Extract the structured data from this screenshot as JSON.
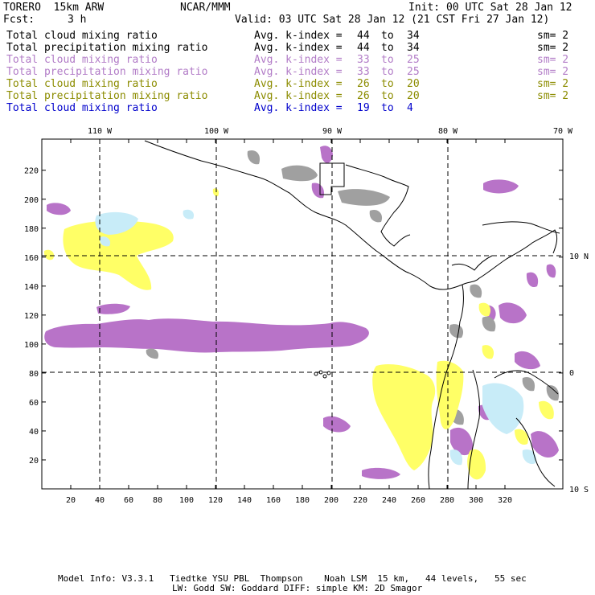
{
  "header": {
    "model": "TORERO  15km ARW",
    "org": "NCAR/MMM",
    "init": "Init: 00 UTC Sat 28 Jan 12",
    "fcst_label": "Fcst:",
    "fcst_value": "3 h",
    "valid": "Valid: 03 UTC Sat 28 Jan 12 (21 CST Fri 27 Jan 12)"
  },
  "legend": [
    {
      "field": "Total cloud mixing ratio",
      "kindex": "Avg. k-index =",
      "from": "44",
      "to_word": "to",
      "to": "34",
      "sm": "sm= 2",
      "color": "#000000"
    },
    {
      "field": "Total precipitation mixing ratio",
      "kindex": "Avg. k-index =",
      "from": "44",
      "to_word": "to",
      "to": "34",
      "sm": "sm= 2",
      "color": "#000000"
    },
    {
      "field": "Total cloud mixing ratio",
      "kindex": "Avg. k-index =",
      "from": "33",
      "to_word": "to",
      "to": "25",
      "sm": "sm= 2",
      "color": "#b27cc7"
    },
    {
      "field": "Total precipitation mixing ratio",
      "kindex": "Avg. k-index =",
      "from": "33",
      "to_word": "to",
      "to": "25",
      "sm": "sm= 2",
      "color": "#b27cc7"
    },
    {
      "field": "Total cloud mixing ratio",
      "kindex": "Avg. k-index =",
      "from": "26",
      "to_word": "to",
      "to": "20",
      "sm": "sm= 2",
      "color": "#8c8c00"
    },
    {
      "field": "Total precipitation mixing ratio",
      "kindex": "Avg. k-index =",
      "from": "26",
      "to_word": "to",
      "to": "20",
      "sm": "sm= 2",
      "color": "#8c8c00"
    },
    {
      "field": "Total cloud mixing ratio",
      "kindex": "Avg. k-index =",
      "from": "19",
      "to_word": "to",
      "to": "4",
      "sm": "",
      "color": "#0000cc"
    }
  ],
  "map": {
    "lon_labels": [
      "110 W",
      "100 W",
      "90 W",
      "80 W",
      "70 W"
    ],
    "lat_labels": [
      "10 N",
      "0",
      "10 S"
    ],
    "y_ticks": [
      "20",
      "40",
      "60",
      "80",
      "100",
      "120",
      "140",
      "160",
      "180",
      "200",
      "220"
    ],
    "x_ticks": [
      "20",
      "40",
      "60",
      "80",
      "100",
      "120",
      "140",
      "160",
      "180",
      "200",
      "220",
      "240",
      "260",
      "280",
      "300",
      "320"
    ],
    "colors": {
      "cloud_high": "#a0a0a0",
      "cloud_mid": "#b873c8",
      "cloud_low": "#ffff66",
      "cloud_very_low": "#c8ecf8"
    }
  },
  "footer": {
    "line1": "Model Info: V3.3.1   Tiedtke YSU PBL  Thompson    Noah LSM  15 km,   44 levels,   55 sec",
    "line2": "LW: Godd SW: Goddard DIFF: simple KM: 2D Smagor"
  }
}
